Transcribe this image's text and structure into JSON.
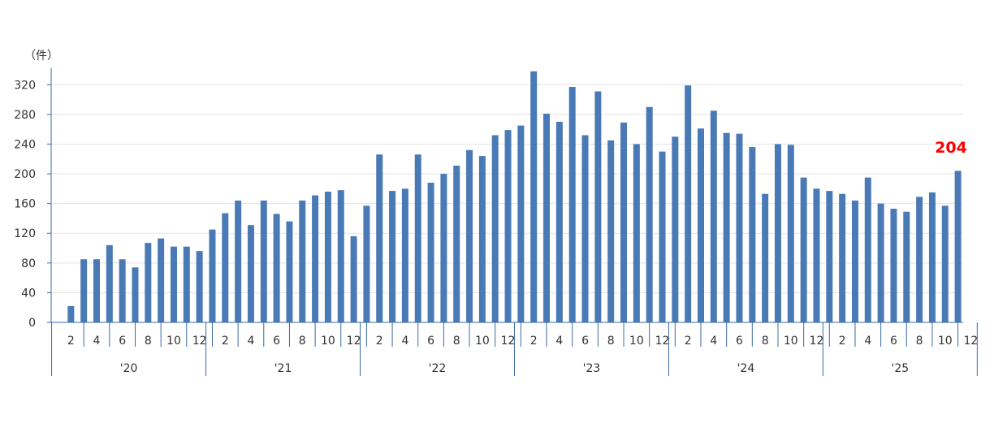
{
  "chart_data": {
    "type": "bar",
    "y_unit_label": "（件）",
    "ylim": [
      0,
      340
    ],
    "y_ticks": [
      0,
      40,
      80,
      120,
      160,
      200,
      240,
      280,
      320
    ],
    "grid": true,
    "bar_color": "#4a7ab5",
    "years": [
      "'20",
      "'21",
      "'22",
      "'23",
      "'24",
      "'25"
    ],
    "months_per_year": 12,
    "month_tick_labels": [
      "2",
      "4",
      "6",
      "8",
      "10",
      "12"
    ],
    "values": [
      0,
      22,
      85,
      85,
      104,
      85,
      74,
      107,
      113,
      102,
      102,
      96,
      125,
      147,
      164,
      131,
      164,
      146,
      136,
      164,
      171,
      176,
      178,
      116,
      157,
      226,
      177,
      180,
      226,
      188,
      200,
      211,
      232,
      224,
      252,
      259,
      265,
      338,
      281,
      270,
      317,
      252,
      311,
      245,
      269,
      240,
      290,
      230,
      250,
      319,
      261,
      285,
      255,
      254,
      236,
      173,
      240,
      239,
      195,
      180,
      177,
      173,
      164,
      195,
      160,
      153,
      149,
      169,
      175,
      157,
      204
    ],
    "last_value_label": "204",
    "last_value_color": "#ff0000"
  }
}
